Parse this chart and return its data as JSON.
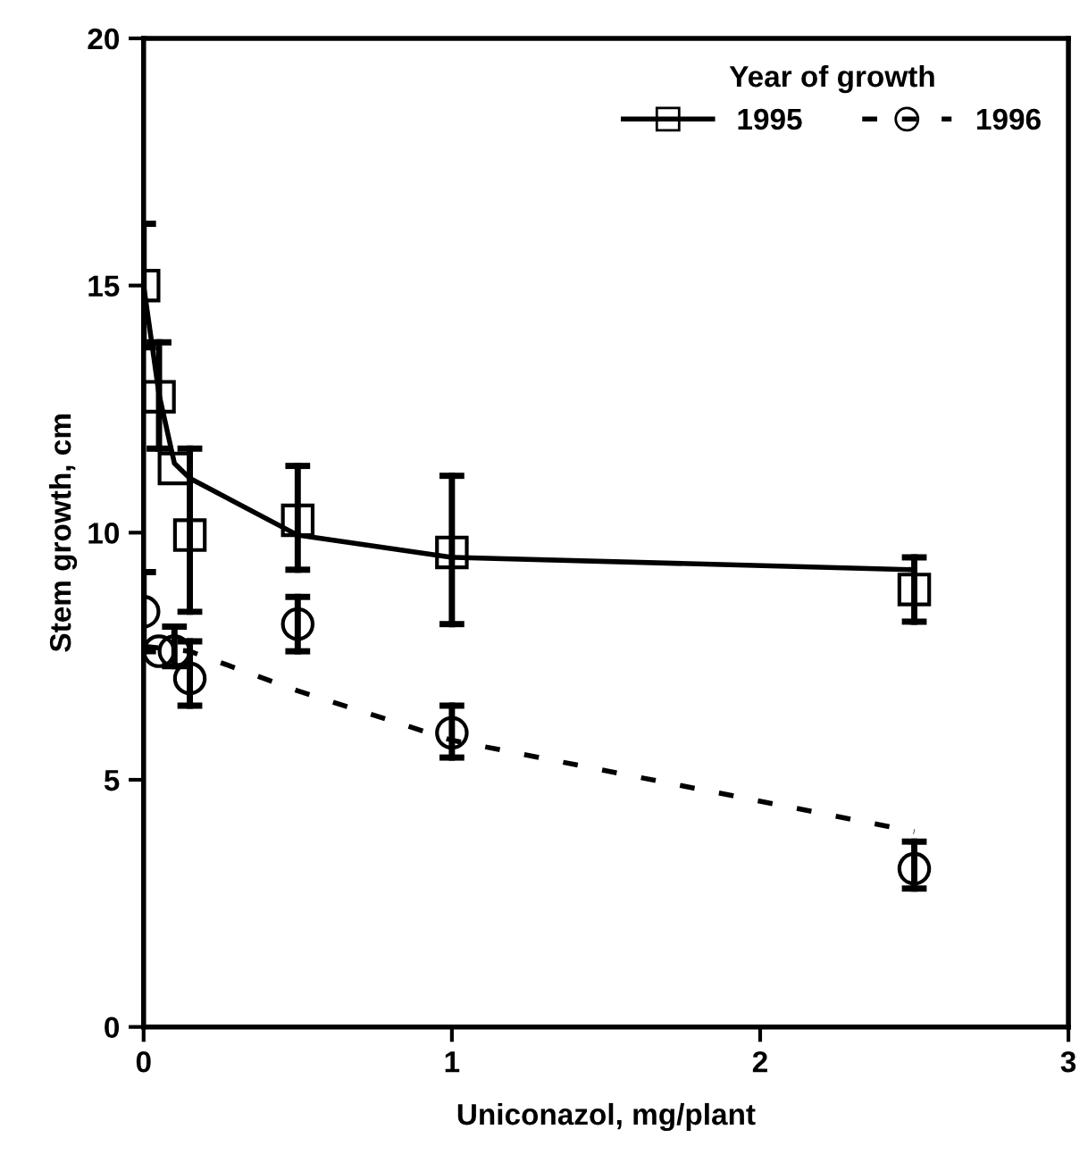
{
  "chart_data": {
    "type": "scatter",
    "xlabel": "Uniconazol, mg/plant",
    "ylabel": "Stem growth, cm",
    "legend_title": "Year of growth",
    "legend": "top right",
    "grid": false,
    "xlim": [
      0,
      3
    ],
    "xticks": [
      0,
      1,
      2,
      3
    ],
    "ylim": [
      0,
      20
    ],
    "yticks": [
      0,
      5,
      10,
      15,
      20
    ],
    "series": [
      {
        "name": "1995",
        "marker": "square",
        "color": "#000000",
        "x": [
          0,
          0.05,
          0.1,
          0.15,
          0.5,
          1,
          2.5
        ],
        "values": [
          15.0,
          12.75,
          11.3,
          9.95,
          10.25,
          9.6,
          8.85
        ],
        "errors": [
          1.25,
          [
            11.7,
            13.85
          ],
          null,
          [
            8.4,
            11.7
          ],
          [
            9.25,
            11.35
          ],
          [
            8.15,
            11.15
          ],
          [
            8.2,
            9.5
          ]
        ]
      },
      {
        "name": "1996",
        "marker": "circle",
        "color": "#000000",
        "x": [
          0,
          0.05,
          0.1,
          0.15,
          0.5,
          1,
          2.5
        ],
        "values": [
          8.4,
          7.6,
          7.6,
          7.05,
          8.15,
          5.95,
          3.2
        ],
        "errors": [
          [
            7.6,
            9.2
          ],
          null,
          [
            7.3,
            8.1
          ],
          [
            6.5,
            7.8
          ],
          [
            7.6,
            8.7
          ],
          [
            5.45,
            6.5
          ],
          [
            2.8,
            3.75
          ]
        ]
      },
      {
        "type": "line",
        "line_style": "solid",
        "marker": "none",
        "color": "#000000",
        "x": [
          0,
          0.05,
          0.1,
          0.15,
          0.5,
          1,
          2.5
        ],
        "values": [
          15.0,
          12.8,
          11.4,
          11.1,
          9.95,
          9.5,
          9.25
        ]
      },
      {
        "type": "line",
        "line_style": "dashed",
        "marker": "none",
        "color": "#000000",
        "x": [
          0,
          0.15,
          0.5,
          1,
          2.5
        ],
        "values": [
          7.7,
          7.6,
          6.8,
          5.8,
          3.95
        ]
      }
    ]
  }
}
